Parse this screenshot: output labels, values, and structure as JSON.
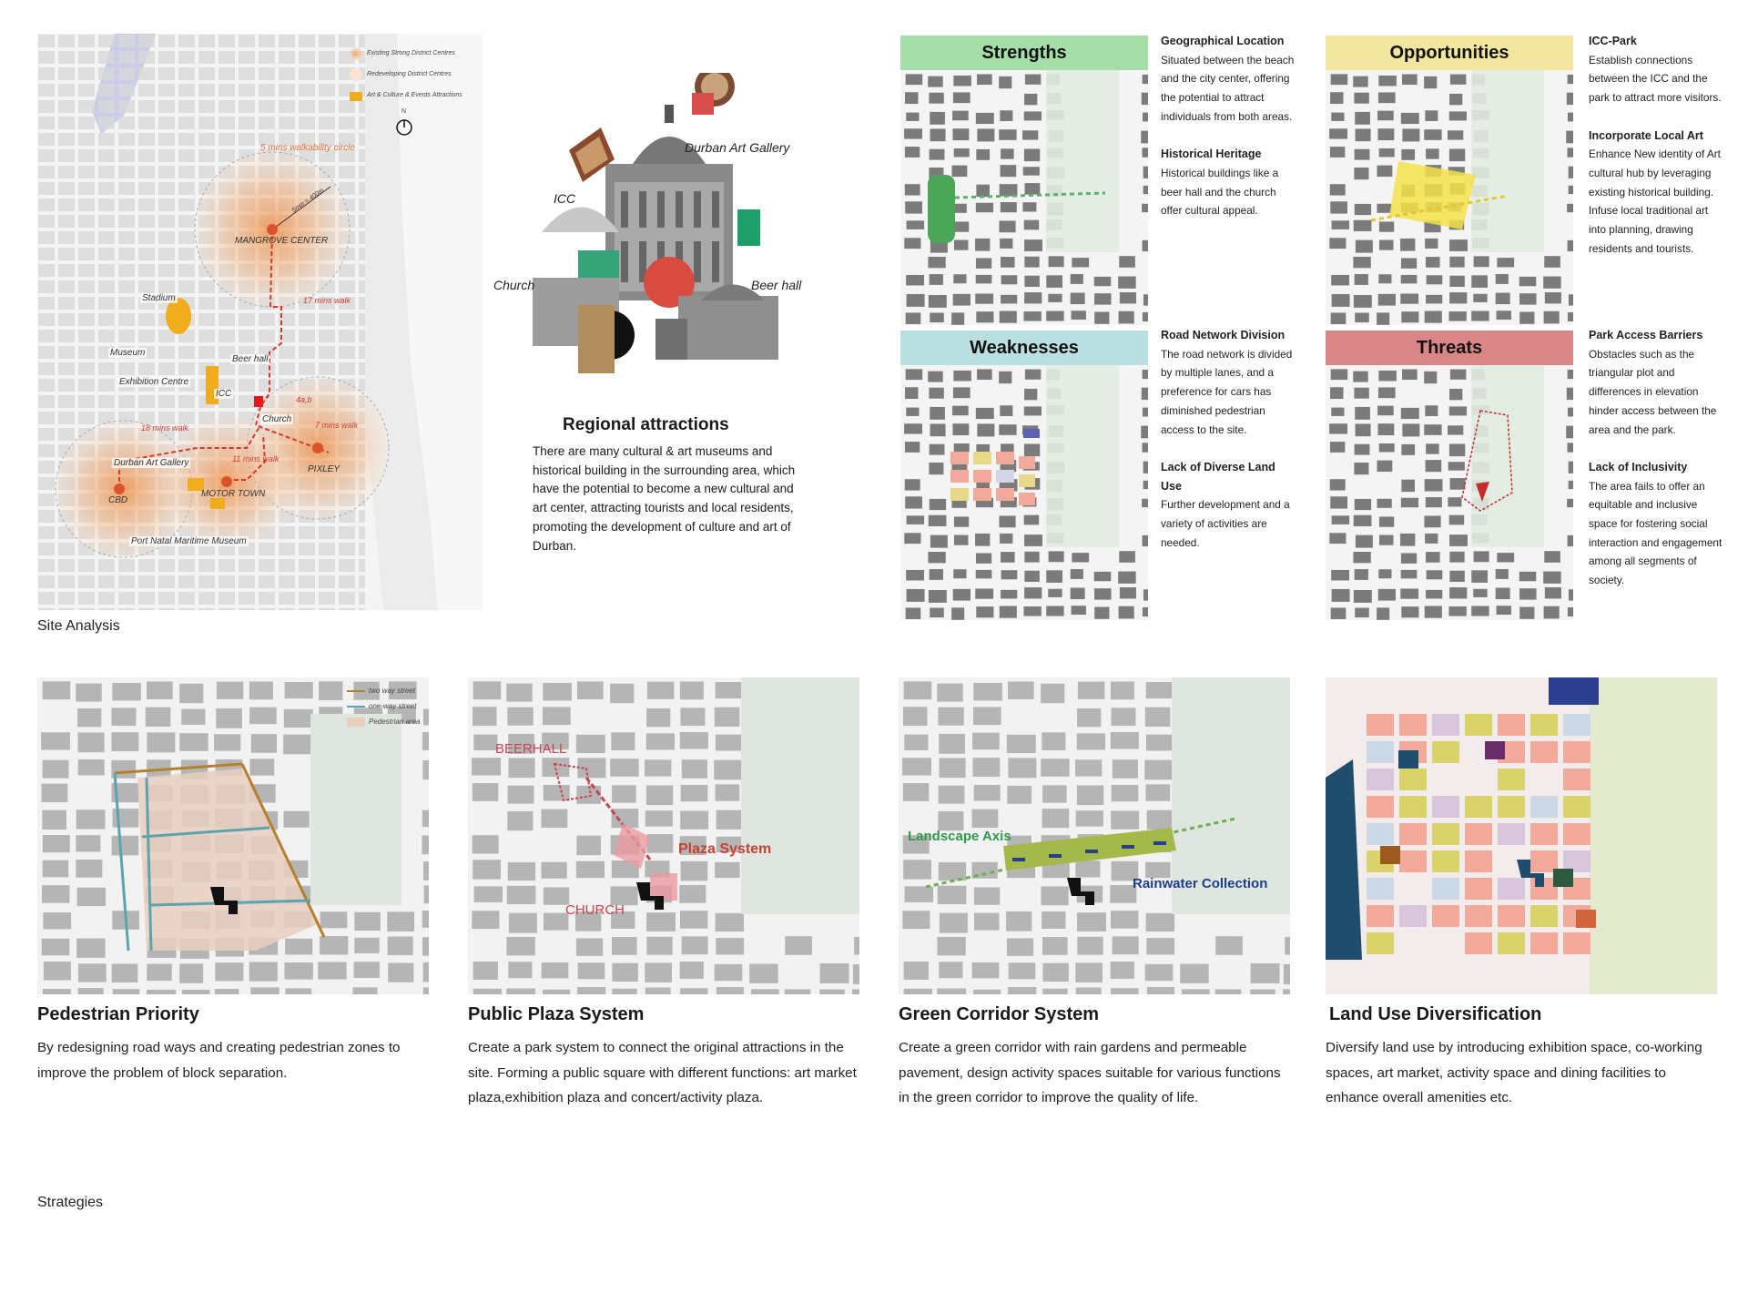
{
  "site_analysis": {
    "caption": "Site Analysis",
    "legend": {
      "strong": "Existing Strong District Centres",
      "redeveloping": "Redeveloping District Centres",
      "attractions": "Art & Culture & Events Attractions",
      "north": "N"
    },
    "labels": {
      "walk_circle": "5 mins walkability circle",
      "radius": "5min = 400m",
      "mangrove": "MANGROVE CENTER",
      "stadium": "Stadium",
      "walk17": "17 mins walk",
      "museum": "Museum",
      "exhibition": "Exhibition Centre",
      "beerhall": "Beer hall",
      "icc": "ICC",
      "site": "4a,b",
      "church": "Church",
      "walk18": "18 mins walk",
      "walk7": "7 mins walk",
      "dag": "Durban Art Gallery",
      "walk11": "11 mins walk",
      "pixley": "PIXLEY",
      "cbd": "CBD",
      "motor": "MOTOR TOWN",
      "port": "Port Natal Maritime Museum"
    }
  },
  "collage": {
    "labels": {
      "dag": "Durban Art Gallery",
      "icc": "ICC",
      "church": "Church",
      "beerhall": "Beer hall"
    }
  },
  "regional": {
    "title": "Regional attractions",
    "text": "There are many cultural & art museums and historical building in the surrounding area, which have the potential to become a new cultural and art center, attracting tourists and local residents, promoting the development of culture and art of Durban."
  },
  "swot": {
    "strengths": {
      "title": "Strengths",
      "color": "#a6deaa",
      "items": [
        {
          "heading": "Geographical Location",
          "text": "Situated between the beach and the city center, offering the potential to attract individuals from both areas."
        },
        {
          "heading": "Historical Heritage",
          "text": "Historical buildings like a beer hall and the church offer cultural appeal."
        }
      ]
    },
    "opportunities": {
      "title": "Opportunities",
      "color": "#f3e6a1",
      "items": [
        {
          "heading": "ICC-Park",
          "text": "Establish connections between the ICC and the park to attract more visitors."
        },
        {
          "heading": "Incorporate Local Art",
          "text": "Enhance New identity of Art cultural hub by leveraging existing historical building. Infuse local traditional art into planning, drawing residents and tourists."
        }
      ]
    },
    "weaknesses": {
      "title": "Weaknesses",
      "color": "#b9dfe0",
      "items": [
        {
          "heading": "Road Network Division",
          "text": "The road network is divided by multiple lanes, and a preference for cars has diminished pedestrian access to the site."
        },
        {
          "heading": "Lack of Diverse Land Use",
          "text": "Further development and a variety of activities are needed."
        }
      ]
    },
    "threats": {
      "title": "Threats",
      "color": "#d98686",
      "items": [
        {
          "heading": "Park Access Barriers",
          "text": "Obstacles such as the triangular plot and differences in elevation hinder access between the area and the park."
        },
        {
          "heading": "Lack of Inclusivity",
          "text": "The area fails to offer an equitable and inclusive space for fostering social interaction and engagement among all segments of society."
        }
      ]
    }
  },
  "strategies": {
    "caption": "Strategies",
    "pedestrian": {
      "title": "Pedestrian Priority",
      "text": "By redesigning road ways and creating pedestrian zones to improve the problem of block separation.",
      "legend": {
        "two_way": "two way street",
        "one_way": "one-way street",
        "area": "Pedestrian area"
      }
    },
    "plaza": {
      "title": "Public Plaza System",
      "text": "Create a park system to connect the original attractions in the site. Forming a public square with different functions: art market plaza,exhibition plaza and concert/activity plaza.",
      "labels": {
        "beerhall": "BEERHALL",
        "plaza": "Plaza System",
        "church": "CHURCH"
      }
    },
    "green": {
      "title": "Green Corridor System",
      "text": "Create a green corridor with rain gardens and permeable pavement, design activity spaces suitable for various functions in the green corridor to improve the quality of life.",
      "labels": {
        "axis": "Landscape Axis",
        "rain": "Rainwater Collection"
      }
    },
    "landuse": {
      "title": "Land Use Diversification",
      "text": "Diversify land use by introducing exhibition space, co-working spaces, art market, activity space and dining facilities to enhance overall amenities etc."
    }
  }
}
